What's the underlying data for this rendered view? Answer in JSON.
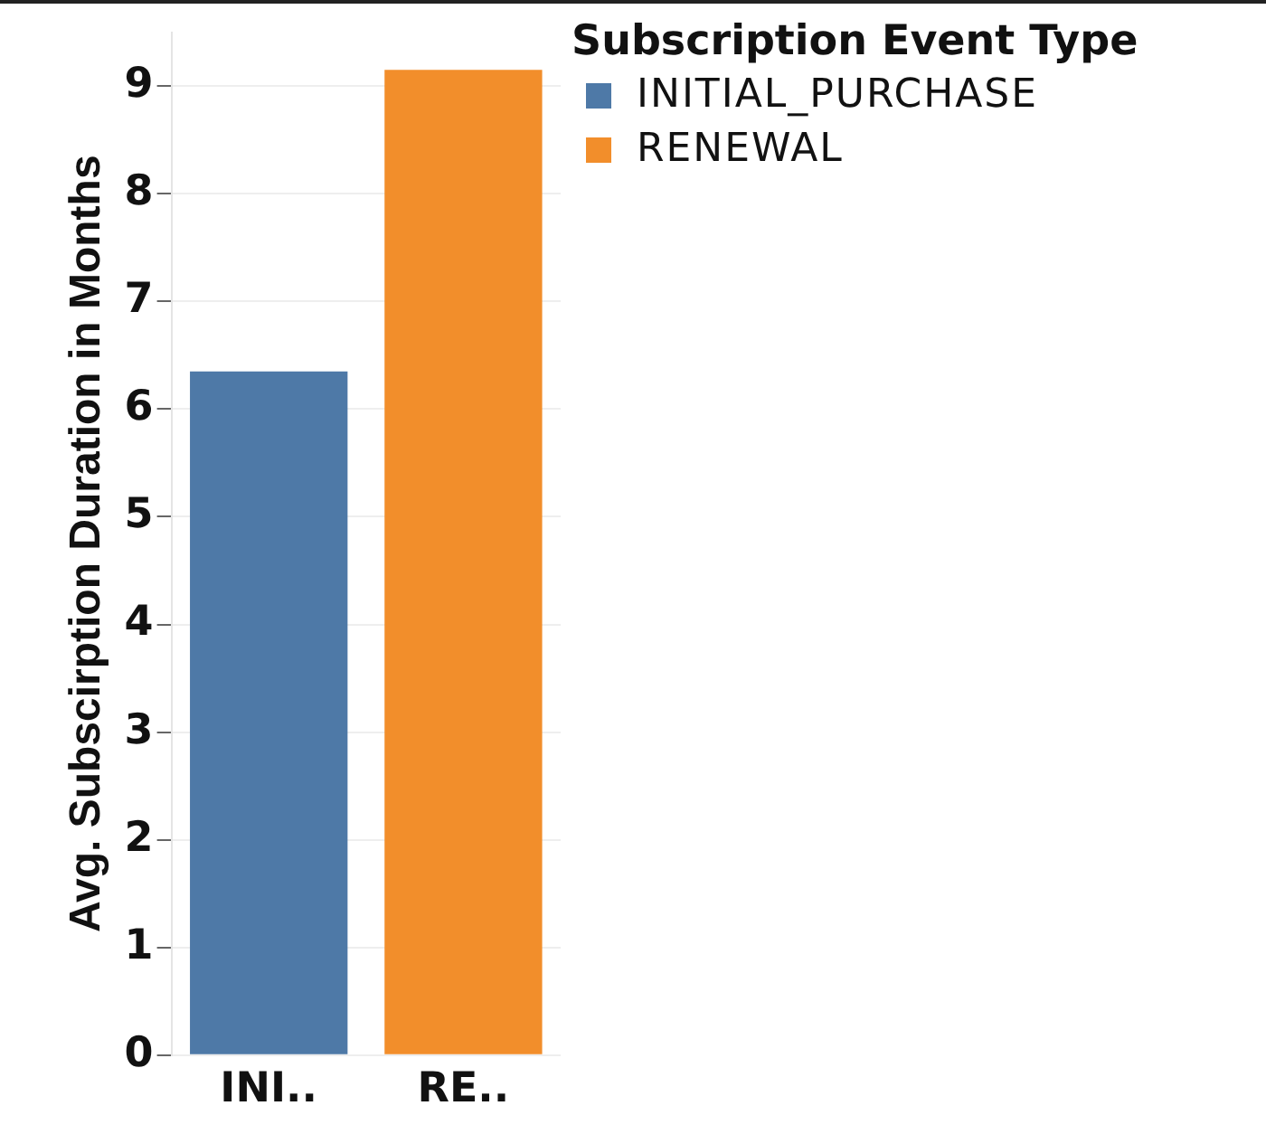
{
  "chart_data": {
    "type": "bar",
    "ylabel": "Avg. Subscirption Duration in Months",
    "legend_title": "Subscription Event Type",
    "categories": [
      "INI..",
      "RE.."
    ],
    "series": [
      {
        "name": "INITIAL_PURCHASE",
        "color": "#4e79a7",
        "values": [
          6.35,
          null
        ]
      },
      {
        "name": "RENEWAL",
        "color": "#f28e2b",
        "values": [
          null,
          9.15
        ]
      }
    ],
    "ylim": [
      0,
      9.5
    ],
    "yticks": [
      0,
      1,
      2,
      3,
      4,
      5,
      6,
      7,
      8,
      9
    ],
    "grid": "y",
    "legend": "top right"
  }
}
